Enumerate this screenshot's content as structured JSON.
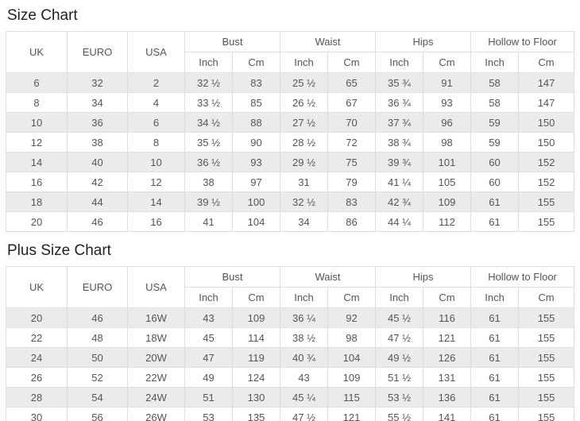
{
  "colors": {
    "title_text": "#1f1f1f",
    "cell_text": "#555555",
    "border": "#dddddd",
    "stripe_row_bg": "#ebebeb",
    "plain_row_bg": "#ffffff",
    "header_bg": "#ffffff",
    "page_bg": "#ffffff"
  },
  "tables": [
    {
      "title": "Size Chart",
      "left_headers": [
        "UK",
        "EURO",
        "USA"
      ],
      "group_headers": [
        "Bust",
        "Waist",
        "Hips",
        "Hollow to Floor"
      ],
      "unit_headers": [
        "Inch",
        "Cm",
        "Inch",
        "Cm",
        "Inch",
        "Cm",
        "Inch",
        "Cm"
      ],
      "rows": [
        [
          "6",
          "32",
          "2",
          "32 ½",
          "83",
          "25 ½",
          "65",
          "35 ¾",
          "91",
          "58",
          "147"
        ],
        [
          "8",
          "34",
          "4",
          "33 ½",
          "85",
          "26 ½",
          "67",
          "36 ¾",
          "93",
          "58",
          "147"
        ],
        [
          "10",
          "36",
          "6",
          "34 ½",
          "88",
          "27 ½",
          "70",
          "37 ¾",
          "96",
          "59",
          "150"
        ],
        [
          "12",
          "38",
          "8",
          "35 ½",
          "90",
          "28 ½",
          "72",
          "38 ¾",
          "98",
          "59",
          "150"
        ],
        [
          "14",
          "40",
          "10",
          "36 ½",
          "93",
          "29 ½",
          "75",
          "39 ¾",
          "101",
          "60",
          "152"
        ],
        [
          "16",
          "42",
          "12",
          "38",
          "97",
          "31",
          "79",
          "41 ¼",
          "105",
          "60",
          "152"
        ],
        [
          "18",
          "44",
          "14",
          "39 ½",
          "100",
          "32 ½",
          "83",
          "42 ¾",
          "109",
          "61",
          "155"
        ],
        [
          "20",
          "46",
          "16",
          "41",
          "104",
          "34",
          "86",
          "44 ¼",
          "112",
          "61",
          "155"
        ]
      ]
    },
    {
      "title": "Plus Size Chart",
      "left_headers": [
        "UK",
        "EURO",
        "USA"
      ],
      "group_headers": [
        "Bust",
        "Waist",
        "Hips",
        "Hollow to Floor"
      ],
      "unit_headers": [
        "Inch",
        "Cm",
        "Inch",
        "Cm",
        "Inch",
        "Cm",
        "Inch",
        "Cm"
      ],
      "rows": [
        [
          "20",
          "46",
          "16W",
          "43",
          "109",
          "36 ¼",
          "92",
          "45 ½",
          "116",
          "61",
          "155"
        ],
        [
          "22",
          "48",
          "18W",
          "45",
          "114",
          "38 ½",
          "98",
          "47 ½",
          "121",
          "61",
          "155"
        ],
        [
          "24",
          "50",
          "20W",
          "47",
          "119",
          "40 ¾",
          "104",
          "49 ½",
          "126",
          "61",
          "155"
        ],
        [
          "26",
          "52",
          "22W",
          "49",
          "124",
          "43",
          "109",
          "51 ½",
          "131",
          "61",
          "155"
        ],
        [
          "28",
          "54",
          "24W",
          "51",
          "130",
          "45 ¼",
          "115",
          "53 ½",
          "136",
          "61",
          "155"
        ],
        [
          "30",
          "56",
          "26W",
          "53",
          "135",
          "47 ½",
          "121",
          "55 ½",
          "141",
          "61",
          "155"
        ]
      ]
    }
  ],
  "chart_data": [
    {
      "type": "table",
      "title": "Size Chart",
      "columns": [
        "UK",
        "EURO",
        "USA",
        "Bust Inch",
        "Bust Cm",
        "Waist Inch",
        "Waist Cm",
        "Hips Inch",
        "Hips Cm",
        "Hollow to Floor Inch",
        "Hollow to Floor Cm"
      ],
      "rows": [
        [
          "6",
          "32",
          "2",
          "32 ½",
          "83",
          "25 ½",
          "65",
          "35 ¾",
          "91",
          "58",
          "147"
        ],
        [
          "8",
          "34",
          "4",
          "33 ½",
          "85",
          "26 ½",
          "67",
          "36 ¾",
          "93",
          "58",
          "147"
        ],
        [
          "10",
          "36",
          "6",
          "34 ½",
          "88",
          "27 ½",
          "70",
          "37 ¾",
          "96",
          "59",
          "150"
        ],
        [
          "12",
          "38",
          "8",
          "35 ½",
          "90",
          "28 ½",
          "72",
          "38 ¾",
          "98",
          "59",
          "150"
        ],
        [
          "14",
          "40",
          "10",
          "36 ½",
          "93",
          "29 ½",
          "75",
          "39 ¾",
          "101",
          "60",
          "152"
        ],
        [
          "16",
          "42",
          "12",
          "38",
          "97",
          "31",
          "79",
          "41 ¼",
          "105",
          "60",
          "152"
        ],
        [
          "18",
          "44",
          "14",
          "39 ½",
          "100",
          "32 ½",
          "83",
          "42 ¾",
          "109",
          "61",
          "155"
        ],
        [
          "20",
          "46",
          "16",
          "41",
          "104",
          "34",
          "86",
          "44 ¼",
          "112",
          "61",
          "155"
        ]
      ]
    },
    {
      "type": "table",
      "title": "Plus Size Chart",
      "columns": [
        "UK",
        "EURO",
        "USA",
        "Bust Inch",
        "Bust Cm",
        "Waist Inch",
        "Waist Cm",
        "Hips Inch",
        "Hips Cm",
        "Hollow to Floor Inch",
        "Hollow to Floor Cm"
      ],
      "rows": [
        [
          "20",
          "46",
          "16W",
          "43",
          "109",
          "36 ¼",
          "92",
          "45 ½",
          "116",
          "61",
          "155"
        ],
        [
          "22",
          "48",
          "18W",
          "45",
          "114",
          "38 ½",
          "98",
          "47 ½",
          "121",
          "61",
          "155"
        ],
        [
          "24",
          "50",
          "20W",
          "47",
          "119",
          "40 ¾",
          "104",
          "49 ½",
          "126",
          "61",
          "155"
        ],
        [
          "26",
          "52",
          "22W",
          "49",
          "124",
          "43",
          "109",
          "51 ½",
          "131",
          "61",
          "155"
        ],
        [
          "28",
          "54",
          "24W",
          "51",
          "130",
          "45 ¼",
          "115",
          "53 ½",
          "136",
          "61",
          "155"
        ],
        [
          "30",
          "56",
          "26W",
          "53",
          "135",
          "47 ½",
          "121",
          "55 ½",
          "141",
          "61",
          "155"
        ]
      ]
    }
  ]
}
